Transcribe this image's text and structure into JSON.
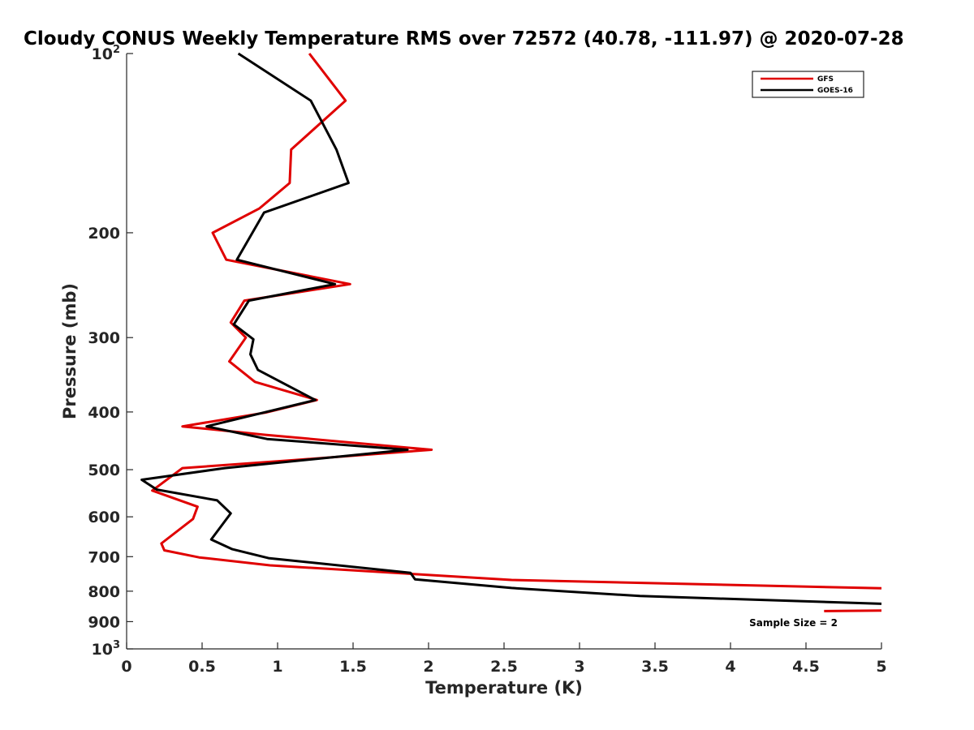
{
  "chart_data": {
    "type": "line",
    "title": "Cloudy CONUS Weekly Temperature RMS over 72572 (40.78, -111.97) @ 2020-07-28",
    "xlabel": "Temperature (K)",
    "ylabel": "Pressure (mb)",
    "xlim": [
      0,
      5
    ],
    "ylim": [
      100,
      1000
    ],
    "yscale": "log",
    "y_reversed": true,
    "x_ticks": [
      0,
      0.5,
      1,
      1.5,
      2,
      2.5,
      3,
      3.5,
      4,
      4.5,
      5
    ],
    "x_tick_labels": [
      "0",
      "0.5",
      "1",
      "1.5",
      "2",
      "2.5",
      "3",
      "3.5",
      "4",
      "4.5",
      "5"
    ],
    "y_ticks": [
      {
        "value": 100,
        "base": "10",
        "exp": "2"
      },
      {
        "value": 200,
        "label": "200"
      },
      {
        "value": 300,
        "label": "300"
      },
      {
        "value": 400,
        "label": "400"
      },
      {
        "value": 500,
        "label": "500"
      },
      {
        "value": 600,
        "label": "600"
      },
      {
        "value": 700,
        "label": "700"
      },
      {
        "value": 800,
        "label": "800"
      },
      {
        "value": 900,
        "label": "900"
      },
      {
        "value": 1000,
        "base": "10",
        "exp": "3"
      }
    ],
    "legend_position": "top-right",
    "series": [
      {
        "name": "GFS",
        "color": "#e00000",
        "points": [
          [
            1.21,
            100
          ],
          [
            1.45,
            120
          ],
          [
            1.09,
            145
          ],
          [
            1.08,
            165
          ],
          [
            0.88,
            182
          ],
          [
            0.57,
            200
          ],
          [
            0.66,
            222
          ],
          [
            1.48,
            244
          ],
          [
            0.78,
            260
          ],
          [
            0.69,
            283
          ],
          [
            0.79,
            300
          ],
          [
            0.68,
            329
          ],
          [
            0.85,
            356
          ],
          [
            1.26,
            382
          ],
          [
            0.92,
            401
          ],
          [
            0.37,
            423
          ],
          [
            0.92,
            437
          ],
          [
            2.02,
            463
          ],
          [
            1.1,
            482
          ],
          [
            0.37,
            497
          ],
          [
            0.17,
            542
          ],
          [
            0.47,
            577
          ],
          [
            0.44,
            605
          ],
          [
            0.23,
            665
          ],
          [
            0.25,
            683
          ],
          [
            0.48,
            702
          ],
          [
            0.95,
            724
          ],
          [
            2.55,
            766
          ],
          [
            5.0,
            791
          ]
        ]
      },
      {
        "name": "GOES-16",
        "color": "#000000",
        "points": [
          [
            0.74,
            100
          ],
          [
            1.22,
            120
          ],
          [
            1.39,
            145
          ],
          [
            1.47,
            165
          ],
          [
            0.91,
            185
          ],
          [
            0.73,
            222
          ],
          [
            1.38,
            244
          ],
          [
            0.81,
            260
          ],
          [
            0.71,
            285
          ],
          [
            0.84,
            302
          ],
          [
            0.82,
            320
          ],
          [
            0.87,
            340
          ],
          [
            1.25,
            382
          ],
          [
            0.53,
            423
          ],
          [
            0.93,
            444
          ],
          [
            1.86,
            463
          ],
          [
            0.65,
            497
          ],
          [
            0.1,
            520
          ],
          [
            0.2,
            540
          ],
          [
            0.6,
            563
          ],
          [
            0.69,
            592
          ],
          [
            0.56,
            655
          ],
          [
            0.7,
            680
          ],
          [
            0.94,
            704
          ],
          [
            1.88,
            745
          ],
          [
            1.91,
            764
          ],
          [
            2.55,
            790
          ],
          [
            3.4,
            815
          ],
          [
            5.0,
            840
          ]
        ]
      },
      {
        "name": "",
        "color": "#e00000",
        "points": [
          [
            4.62,
            864
          ],
          [
            5.0,
            862
          ]
        ]
      }
    ],
    "annotations": [
      {
        "text": "Sample Size = 2",
        "x": 4.35,
        "y": 905
      }
    ]
  }
}
